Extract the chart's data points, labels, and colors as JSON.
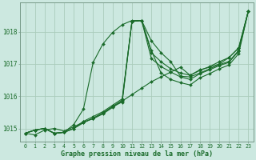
{
  "bg_color": "#cce8e0",
  "grid_color": "#aaccbb",
  "line_color": "#1a6b2a",
  "xlabel": "Graphe pression niveau de la mer (hPa)",
  "ylabel_ticks": [
    1015,
    1016,
    1017,
    1018
  ],
  "xticks": [
    0,
    1,
    2,
    3,
    4,
    5,
    6,
    7,
    8,
    9,
    10,
    11,
    12,
    13,
    14,
    15,
    16,
    17,
    18,
    19,
    20,
    21,
    22,
    23
  ],
  "xlim": [
    -0.5,
    23.5
  ],
  "ylim": [
    1014.6,
    1018.9
  ],
  "series": [
    [
      1014.85,
      1014.8,
      1014.95,
      1015.0,
      1014.92,
      1015.05,
      1015.2,
      1015.3,
      1015.45,
      1015.65,
      1015.85,
      1016.05,
      1016.25,
      1016.45,
      1016.6,
      1016.75,
      1016.9,
      1016.65,
      1016.82,
      1016.9,
      1017.0,
      1017.2,
      1017.5,
      1018.65
    ],
    [
      1014.85,
      1014.95,
      1015.0,
      1014.85,
      1014.88,
      1015.0,
      1015.18,
      1015.32,
      1015.48,
      1015.68,
      1015.88,
      1018.32,
      1018.35,
      1017.72,
      1017.35,
      1017.07,
      1016.62,
      1016.6,
      1016.72,
      1016.85,
      1016.98,
      1017.08,
      1017.42,
      1018.65
    ],
    [
      1014.85,
      1014.95,
      1015.0,
      1014.85,
      1014.88,
      1015.0,
      1015.18,
      1015.32,
      1015.48,
      1015.68,
      1015.82,
      1018.32,
      1018.35,
      1017.42,
      1016.72,
      1016.52,
      1016.42,
      1016.35,
      1016.57,
      1016.7,
      1016.85,
      1016.97,
      1017.32,
      1018.65
    ],
    [
      1014.85,
      1014.95,
      1015.0,
      1014.85,
      1014.88,
      1015.0,
      1015.22,
      1015.37,
      1015.52,
      1015.72,
      1015.92,
      1018.32,
      1018.35,
      1017.17,
      1016.92,
      1016.75,
      1016.6,
      1016.52,
      1016.7,
      1016.82,
      1016.95,
      1017.05,
      1017.4,
      1018.65
    ],
    [
      1014.85,
      1014.95,
      1015.0,
      1014.85,
      1014.88,
      1015.12,
      1015.6,
      1017.05,
      1017.62,
      1017.98,
      1018.22,
      1018.35,
      1018.35,
      1017.35,
      1017.07,
      1016.85,
      1016.72,
      1016.65,
      1016.8,
      1016.92,
      1017.07,
      1017.2,
      1017.5,
      1018.65
    ]
  ]
}
